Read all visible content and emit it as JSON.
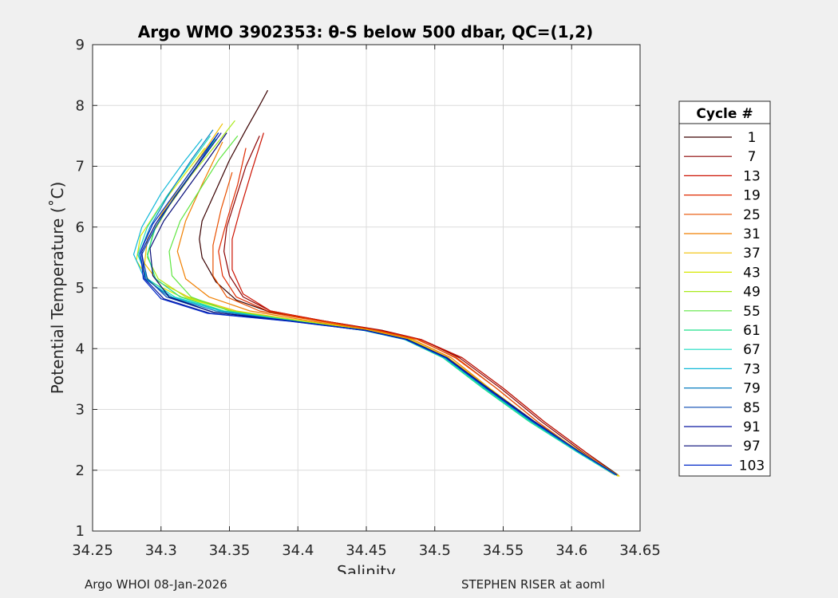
{
  "chart_data": {
    "type": "line",
    "title": "Argo WMO 3902353: θ-S below 500 dbar,  QC=(1,2)",
    "xlabel": "Salinity",
    "ylabel": "Potential Temperature (˚C)",
    "xlim": [
      34.25,
      34.65
    ],
    "ylim": [
      1,
      9
    ],
    "xticks": [
      "34.25",
      "34.3",
      "34.35",
      "34.4",
      "34.45",
      "34.5",
      "34.55",
      "34.6",
      "34.65"
    ],
    "yticks": [
      "1",
      "2",
      "3",
      "4",
      "5",
      "6",
      "7",
      "8",
      "9"
    ],
    "grid": true,
    "legend": {
      "title": "Cycle #",
      "placement": "right-outside",
      "entries": [
        "1",
        "7",
        "13",
        "19",
        "25",
        "31",
        "37",
        "43",
        "49",
        "55",
        "61",
        "67",
        "73",
        "79",
        "85",
        "91",
        "97",
        "103"
      ],
      "colors": [
        "#3a0000",
        "#8b0000",
        "#cc1100",
        "#e02a00",
        "#e85000",
        "#f07f00",
        "#f0c000",
        "#d8e800",
        "#a8ea1a",
        "#5ee640",
        "#1ee08a",
        "#18dcc0",
        "#10b8d8",
        "#0a7fc0",
        "#0848b0",
        "#0a18a0",
        "#060c78",
        "#0028c8"
      ]
    },
    "series": [
      {
        "name": "1",
        "color": "#3a0000",
        "x": [
          34.634,
          34.61,
          34.58,
          34.55,
          34.52,
          34.49,
          34.46,
          34.42,
          34.38,
          34.355,
          34.34,
          34.33,
          34.328,
          34.33,
          34.34,
          34.35,
          34.362,
          34.372,
          34.378
        ],
        "y": [
          1.92,
          2.3,
          2.8,
          3.35,
          3.85,
          4.15,
          4.3,
          4.45,
          4.6,
          4.8,
          5.1,
          5.5,
          5.8,
          6.1,
          6.6,
          7.1,
          7.6,
          8.0,
          8.25
        ]
      },
      {
        "name": "7",
        "color": "#8b0000",
        "x": [
          34.632,
          34.608,
          34.578,
          34.548,
          34.518,
          34.49,
          34.462,
          34.42,
          34.38,
          34.36,
          34.35,
          34.346,
          34.348,
          34.355,
          34.362,
          34.372
        ],
        "y": [
          1.93,
          2.3,
          2.8,
          3.35,
          3.85,
          4.15,
          4.3,
          4.45,
          4.62,
          4.85,
          5.2,
          5.6,
          6.0,
          6.5,
          7.0,
          7.5
        ]
      },
      {
        "name": "13",
        "color": "#cc1100",
        "x": [
          34.633,
          34.61,
          34.58,
          34.55,
          34.52,
          34.49,
          34.46,
          34.42,
          34.38,
          34.36,
          34.352,
          34.352,
          34.358,
          34.366,
          34.375
        ],
        "y": [
          1.92,
          2.3,
          2.8,
          3.35,
          3.85,
          4.15,
          4.3,
          4.45,
          4.62,
          4.9,
          5.3,
          5.8,
          6.3,
          6.9,
          7.55
        ]
      },
      {
        "name": "19",
        "color": "#e02a00",
        "x": [
          34.63,
          34.605,
          34.575,
          34.545,
          34.515,
          34.488,
          34.458,
          34.418,
          34.378,
          34.355,
          34.345,
          34.342,
          34.348,
          34.356,
          34.362
        ],
        "y": [
          1.94,
          2.3,
          2.8,
          3.35,
          3.85,
          4.15,
          4.3,
          4.45,
          4.62,
          4.85,
          5.2,
          5.6,
          6.1,
          6.7,
          7.3
        ]
      },
      {
        "name": "25",
        "color": "#e85000",
        "x": [
          34.631,
          34.606,
          34.575,
          34.545,
          34.516,
          34.487,
          34.457,
          34.416,
          34.372,
          34.348,
          34.338,
          34.338,
          34.344,
          34.352
        ],
        "y": [
          1.93,
          2.3,
          2.8,
          3.35,
          3.85,
          4.15,
          4.3,
          4.45,
          4.62,
          4.85,
          5.2,
          5.7,
          6.3,
          6.9
        ]
      },
      {
        "name": "31",
        "color": "#f07f00",
        "x": [
          34.632,
          34.605,
          34.572,
          34.54,
          34.512,
          34.484,
          34.455,
          34.41,
          34.365,
          34.335,
          34.318,
          34.312,
          34.318,
          34.33,
          34.345
        ],
        "y": [
          1.93,
          2.3,
          2.8,
          3.35,
          3.85,
          4.15,
          4.3,
          4.45,
          4.62,
          4.85,
          5.15,
          5.6,
          6.1,
          6.7,
          7.4
        ]
      },
      {
        "name": "37",
        "color": "#f0c000",
        "x": [
          34.635,
          34.607,
          34.573,
          34.54,
          34.51,
          34.482,
          34.452,
          34.405,
          34.355,
          34.32,
          34.298,
          34.288,
          34.29,
          34.3,
          34.315,
          34.33,
          34.345
        ],
        "y": [
          1.9,
          2.3,
          2.8,
          3.35,
          3.85,
          4.15,
          4.3,
          4.45,
          4.62,
          4.85,
          5.1,
          5.4,
          5.8,
          6.2,
          6.7,
          7.2,
          7.7
        ]
      },
      {
        "name": "43",
        "color": "#d8e800",
        "x": [
          34.634,
          34.606,
          34.572,
          34.538,
          34.509,
          34.481,
          34.451,
          34.404,
          34.352,
          34.315,
          34.292,
          34.282,
          34.285,
          34.298,
          34.315,
          34.332
        ],
        "y": [
          1.9,
          2.3,
          2.8,
          3.35,
          3.85,
          4.15,
          4.3,
          4.45,
          4.62,
          4.85,
          5.1,
          5.45,
          5.85,
          6.3,
          6.8,
          7.3
        ]
      },
      {
        "name": "49",
        "color": "#a8ea1a",
        "x": [
          34.633,
          34.605,
          34.57,
          34.537,
          34.508,
          34.48,
          34.45,
          34.402,
          34.352,
          34.318,
          34.298,
          34.29,
          34.294,
          34.306,
          34.322,
          34.34,
          34.354
        ],
        "y": [
          1.92,
          2.3,
          2.8,
          3.35,
          3.85,
          4.15,
          4.3,
          4.45,
          4.62,
          4.85,
          5.15,
          5.5,
          5.9,
          6.35,
          6.85,
          7.35,
          7.75
        ]
      },
      {
        "name": "55",
        "color": "#5ee640",
        "x": [
          34.632,
          34.604,
          34.57,
          34.536,
          34.507,
          34.479,
          34.449,
          34.4,
          34.35,
          34.322,
          34.308,
          34.306,
          34.314,
          34.328,
          34.342,
          34.356
        ],
        "y": [
          1.92,
          2.3,
          2.8,
          3.35,
          3.85,
          4.15,
          4.3,
          4.45,
          4.62,
          4.85,
          5.2,
          5.6,
          6.1,
          6.6,
          7.1,
          7.5
        ]
      },
      {
        "name": "61",
        "color": "#1ee08a",
        "x": [
          34.632,
          34.604,
          34.569,
          34.535,
          34.506,
          34.478,
          34.448,
          34.398,
          34.346,
          34.314,
          34.296,
          34.29,
          34.296,
          34.31,
          34.326,
          34.34
        ],
        "y": [
          1.92,
          2.3,
          2.8,
          3.35,
          3.85,
          4.15,
          4.3,
          4.45,
          4.62,
          4.85,
          5.15,
          5.55,
          6.0,
          6.5,
          7.0,
          7.45
        ]
      },
      {
        "name": "67",
        "color": "#18dcc0",
        "x": [
          34.632,
          34.604,
          34.57,
          34.536,
          34.507,
          34.478,
          34.448,
          34.398,
          34.345,
          34.31,
          34.29,
          34.283,
          34.29,
          34.304,
          34.32,
          34.336
        ],
        "y": [
          1.92,
          2.3,
          2.8,
          3.35,
          3.85,
          4.15,
          4.3,
          4.45,
          4.62,
          4.85,
          5.15,
          5.55,
          6.0,
          6.5,
          7.0,
          7.5
        ]
      },
      {
        "name": "73",
        "color": "#10b8d8",
        "x": [
          34.633,
          34.605,
          34.571,
          34.537,
          34.507,
          34.479,
          34.449,
          34.398,
          34.344,
          34.308,
          34.288,
          34.28,
          34.286,
          34.3,
          34.316,
          34.33
        ],
        "y": [
          1.92,
          2.3,
          2.8,
          3.35,
          3.85,
          4.15,
          4.3,
          4.45,
          4.62,
          4.85,
          5.15,
          5.55,
          6.0,
          6.55,
          7.05,
          7.45
        ]
      },
      {
        "name": "79",
        "color": "#0a7fc0",
        "x": [
          34.633,
          34.605,
          34.571,
          34.537,
          34.508,
          34.479,
          34.449,
          34.396,
          34.34,
          34.306,
          34.289,
          34.284,
          34.292,
          34.306,
          34.322,
          34.338
        ],
        "y": [
          1.92,
          2.3,
          2.8,
          3.35,
          3.85,
          4.15,
          4.3,
          4.45,
          4.62,
          4.85,
          5.15,
          5.55,
          6.0,
          6.55,
          7.1,
          7.6
        ]
      },
      {
        "name": "85",
        "color": "#0848b0",
        "x": [
          34.633,
          34.606,
          34.572,
          34.538,
          34.508,
          34.479,
          34.449,
          34.396,
          34.338,
          34.304,
          34.29,
          34.286,
          34.296,
          34.31,
          34.326,
          34.342
        ],
        "y": [
          1.92,
          2.3,
          2.8,
          3.35,
          3.85,
          4.15,
          4.3,
          4.45,
          4.6,
          4.85,
          5.15,
          5.55,
          6.0,
          6.5,
          7.0,
          7.55
        ]
      },
      {
        "name": "91",
        "color": "#0a18a0",
        "x": [
          34.633,
          34.606,
          34.572,
          34.538,
          34.509,
          34.48,
          34.45,
          34.395,
          34.336,
          34.302,
          34.288,
          34.286,
          34.296,
          34.312,
          34.328,
          34.344
        ],
        "y": [
          1.92,
          2.3,
          2.8,
          3.35,
          3.85,
          4.15,
          4.3,
          4.45,
          4.58,
          4.82,
          5.15,
          5.6,
          6.05,
          6.55,
          7.05,
          7.55
        ]
      },
      {
        "name": "97",
        "color": "#060c78",
        "x": [
          34.633,
          34.606,
          34.573,
          34.539,
          34.509,
          34.48,
          34.45,
          34.396,
          34.338,
          34.306,
          34.294,
          34.292,
          34.302,
          34.318,
          34.334,
          34.348
        ],
        "y": [
          1.92,
          2.3,
          2.8,
          3.35,
          3.85,
          4.15,
          4.3,
          4.45,
          4.6,
          4.85,
          5.2,
          5.65,
          6.1,
          6.6,
          7.1,
          7.55
        ]
      },
      {
        "name": "103",
        "color": "#0028c8",
        "x": [
          34.633,
          34.606,
          34.572,
          34.538,
          34.508,
          34.479,
          34.449,
          34.394,
          34.334,
          34.3,
          34.287,
          34.285,
          34.294,
          34.31,
          34.326,
          34.342
        ],
        "y": [
          1.92,
          2.3,
          2.8,
          3.35,
          3.85,
          4.15,
          4.3,
          4.45,
          4.58,
          4.82,
          5.15,
          5.6,
          6.05,
          6.55,
          7.05,
          7.55
        ]
      }
    ]
  },
  "footer": {
    "left": "Argo WHOI 08-Jan-2026",
    "right": "STEPHEN RISER at aoml"
  }
}
